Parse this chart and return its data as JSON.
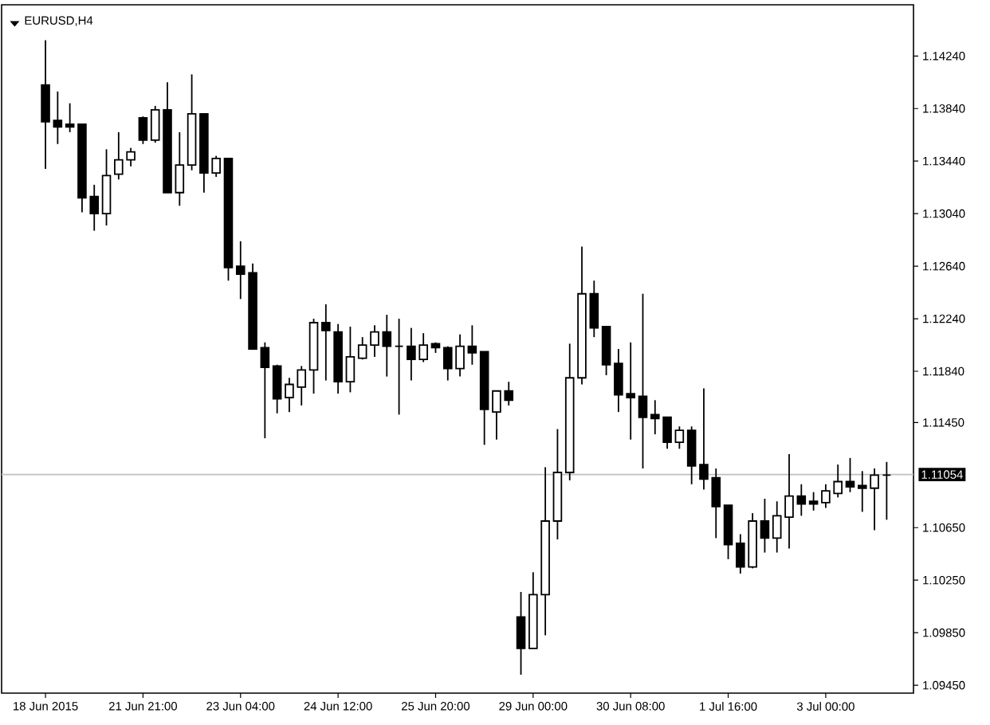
{
  "chart_data": {
    "type": "candlestick",
    "title": "EURUSD,H4",
    "categories": [
      "18 Jun 2015",
      null,
      null,
      null,
      null,
      null,
      null,
      null,
      "21 Jun 21:00",
      null,
      null,
      null,
      null,
      null,
      null,
      null,
      "23 Jun 04:00",
      null,
      null,
      null,
      null,
      null,
      null,
      null,
      "24 Jun 12:00",
      null,
      null,
      null,
      null,
      null,
      null,
      null,
      "25 Jun 20:00",
      null,
      null,
      null,
      null,
      null,
      null,
      null,
      "29 Jun 00:00",
      null,
      null,
      null,
      null,
      null,
      null,
      null,
      "30 Jun 08:00",
      null,
      null,
      null,
      null,
      null,
      null,
      null,
      "1 Jul 16:00",
      null,
      null,
      null,
      null,
      null,
      null,
      null,
      "3 Jul 00:00",
      null,
      null,
      null,
      null,
      null
    ],
    "ohlc": [
      [
        1.1402,
        1.1436,
        1.1338,
        1.1374
      ],
      [
        1.1375,
        1.1397,
        1.1357,
        1.137
      ],
      [
        1.1372,
        1.1388,
        1.1366,
        1.137
      ],
      [
        1.1372,
        1.1372,
        1.1305,
        1.1316
      ],
      [
        1.1317,
        1.1326,
        1.1291,
        1.1304
      ],
      [
        1.1304,
        1.1353,
        1.1295,
        1.1333
      ],
      [
        1.1334,
        1.1366,
        1.133,
        1.1345
      ],
      [
        1.1345,
        1.1354,
        1.134,
        1.1351
      ],
      [
        1.1377,
        1.1378,
        1.1357,
        1.136
      ],
      [
        1.136,
        1.1386,
        1.1358,
        1.1383
      ],
      [
        1.1383,
        1.1404,
        1.132,
        1.132
      ],
      [
        1.132,
        1.1366,
        1.131,
        1.1341
      ],
      [
        1.1341,
        1.141,
        1.1337,
        1.138
      ],
      [
        1.138,
        1.138,
        1.132,
        1.1335
      ],
      [
        1.1335,
        1.1348,
        1.1332,
        1.1346
      ],
      [
        1.1346,
        1.1346,
        1.1253,
        1.1263
      ],
      [
        1.1264,
        1.1283,
        1.1239,
        1.1258
      ],
      [
        1.1259,
        1.1266,
        1.1201,
        1.1201
      ],
      [
        1.1202,
        1.1206,
        1.1133,
        1.1187
      ],
      [
        1.1188,
        1.1189,
        1.1152,
        1.1163
      ],
      [
        1.1164,
        1.1179,
        1.1153,
        1.1174
      ],
      [
        1.1172,
        1.1188,
        1.1158,
        1.1185
      ],
      [
        1.1185,
        1.1224,
        1.1167,
        1.1221
      ],
      [
        1.1221,
        1.1235,
        1.1177,
        1.1215
      ],
      [
        1.1214,
        1.122,
        1.1167,
        1.1176
      ],
      [
        1.1176,
        1.1218,
        1.1168,
        1.1195
      ],
      [
        1.1194,
        1.121,
        1.1193,
        1.1204
      ],
      [
        1.1204,
        1.1219,
        1.1195,
        1.1214
      ],
      [
        1.1214,
        1.1227,
        1.118,
        1.1203
      ],
      [
        1.1203,
        1.1224,
        1.1151,
        1.1203
      ],
      [
        1.1203,
        1.1217,
        1.1177,
        1.1193
      ],
      [
        1.1193,
        1.1213,
        1.1191,
        1.1204
      ],
      [
        1.1205,
        1.1206,
        1.1198,
        1.1202
      ],
      [
        1.1202,
        1.1203,
        1.1177,
        1.1186
      ],
      [
        1.1186,
        1.1212,
        1.118,
        1.1203
      ],
      [
        1.1203,
        1.1219,
        1.1189,
        1.1198
      ],
      [
        1.1199,
        1.1199,
        1.1128,
        1.1155
      ],
      [
        1.1153,
        1.1169,
        1.1132,
        1.1169
      ],
      [
        1.1169,
        1.1176,
        1.1158,
        1.1162
      ],
      [
        1.0997,
        1.1016,
        1.0953,
        1.0973
      ],
      [
        1.0973,
        1.1031,
        1.0973,
        1.1014
      ],
      [
        1.1014,
        1.1111,
        1.0983,
        1.107
      ],
      [
        1.107,
        1.114,
        1.1056,
        1.1107
      ],
      [
        1.1107,
        1.1205,
        1.1101,
        1.1179
      ],
      [
        1.1179,
        1.1279,
        1.1174,
        1.1243
      ],
      [
        1.1243,
        1.1253,
        1.121,
        1.1217
      ],
      [
        1.1218,
        1.1218,
        1.1181,
        1.1189
      ],
      [
        1.119,
        1.1201,
        1.1153,
        1.1166
      ],
      [
        1.1167,
        1.1206,
        1.1132,
        1.1164
      ],
      [
        1.1165,
        1.1243,
        1.111,
        1.1149
      ],
      [
        1.1151,
        1.1162,
        1.1136,
        1.1148
      ],
      [
        1.1149,
        1.1149,
        1.1125,
        1.113
      ],
      [
        1.113,
        1.1142,
        1.1125,
        1.1139
      ],
      [
        1.1139,
        1.1142,
        1.1098,
        1.1112
      ],
      [
        1.1113,
        1.1171,
        1.1094,
        1.1102
      ],
      [
        1.1103,
        1.111,
        1.1057,
        1.1081
      ],
      [
        1.1082,
        1.1082,
        1.1041,
        1.1052
      ],
      [
        1.1053,
        1.106,
        1.103,
        1.1035
      ],
      [
        1.1035,
        1.1076,
        1.1034,
        1.107
      ],
      [
        1.107,
        1.1087,
        1.1046,
        1.1057
      ],
      [
        1.1057,
        1.1085,
        1.1046,
        1.1074
      ],
      [
        1.1073,
        1.1121,
        1.1049,
        1.1089
      ],
      [
        1.1089,
        1.1098,
        1.1074,
        1.1083
      ],
      [
        1.1085,
        1.1092,
        1.1078,
        1.1083
      ],
      [
        1.1084,
        1.1098,
        1.108,
        1.1093
      ],
      [
        1.1091,
        1.1113,
        1.1088,
        1.11
      ],
      [
        1.11,
        1.1118,
        1.1092,
        1.1096
      ],
      [
        1.1097,
        1.1108,
        1.1077,
        1.1095
      ],
      [
        1.1095,
        1.111,
        1.1063,
        1.1105
      ],
      [
        1.1105,
        1.1115,
        1.1071,
        1.1105
      ]
    ],
    "color": "#000000",
    "ylim": [
      1.0939,
      1.1463
    ],
    "yticks": [
      {
        "value": 1.1424,
        "label": "1.14240"
      },
      {
        "value": 1.1384,
        "label": "1.13840"
      },
      {
        "value": 1.1344,
        "label": "1.13440"
      },
      {
        "value": 1.1304,
        "label": "1.13040"
      },
      {
        "value": 1.1264,
        "label": "1.12640"
      },
      {
        "value": 1.1224,
        "label": "1.12240"
      },
      {
        "value": 1.1184,
        "label": "1.11840"
      },
      {
        "value": 1.1145,
        "label": "1.11450"
      },
      {
        "value": 1.1065,
        "label": "1.10650"
      },
      {
        "value": 1.1025,
        "label": "1.10250"
      },
      {
        "value": 1.0985,
        "label": "1.09850"
      },
      {
        "value": 1.0945,
        "label": "1.09450"
      }
    ],
    "ref_lines": [
      {
        "axis": "y",
        "value": 1.11054,
        "label": "1.11054",
        "color": "#c0c0c0"
      }
    ]
  }
}
